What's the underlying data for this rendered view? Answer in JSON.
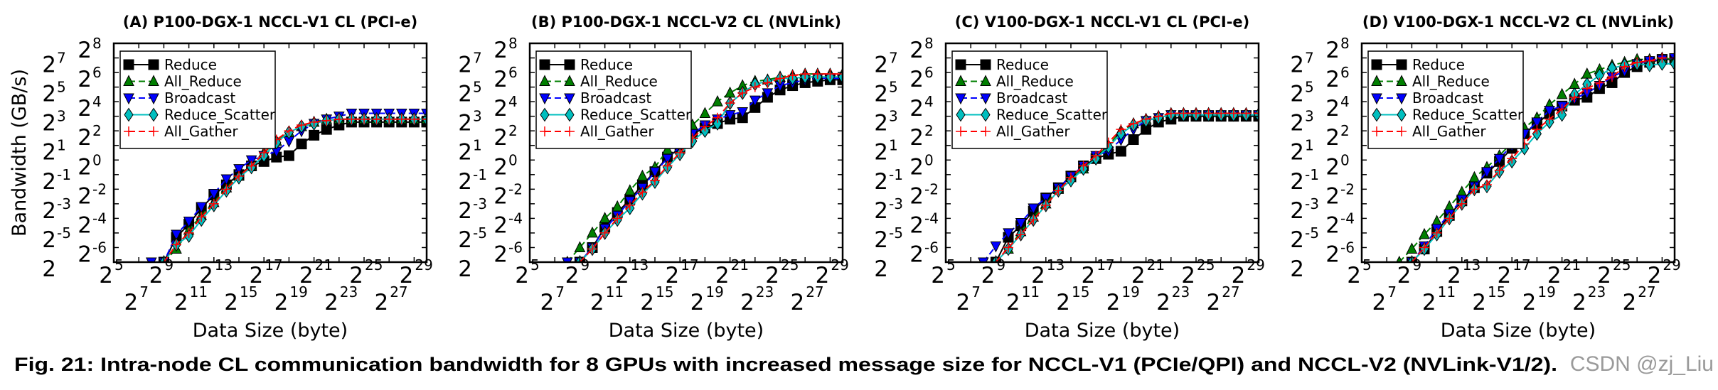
{
  "caption": "Fig. 21: Intra-node CL communication bandwidth for 8 GPUs with increased message size for NCCL-V1 (PCIe/QPI) and NCCL-V2 (NVLink-V1/2).",
  "watermark": "CSDN @zj_Liu",
  "legend_entries": [
    "Reduce",
    "All_Reduce",
    "Broadcast",
    "Reduce_Scatter",
    "All_Gather"
  ],
  "series_style": [
    {
      "name": "Reduce",
      "color": "#000000",
      "marker": "square",
      "line": "solid"
    },
    {
      "name": "All_Reduce",
      "color": "#007f00",
      "marker": "triangle-up",
      "line": "dashed"
    },
    {
      "name": "Broadcast",
      "color": "#0000ff",
      "marker": "triangle-down",
      "line": "dashed"
    },
    {
      "name": "Reduce_Scatter",
      "color": "#00bfbf",
      "marker": "diamond",
      "line": "solid"
    },
    {
      "name": "All_Gather",
      "color": "#ff0000",
      "marker": "plus",
      "line": "dashed"
    }
  ],
  "chart_data": [
    {
      "type": "line",
      "title": "(A) P100-DGX-1 NCCL-V1 CL (PCI-e)",
      "xlabel": "Data Size (byte)",
      "ylabel": "Bandwidth (GB/s)",
      "scale": "log2 both axes (values are exponents of 2)",
      "xlim": [
        5,
        30
      ],
      "ylim": [
        -7,
        8
      ],
      "xtick_base": "2",
      "xtick_exponents": [
        "5",
        "7",
        "9",
        "11",
        "13",
        "15",
        "17",
        "19",
        "21",
        "23",
        "25",
        "27",
        "29"
      ],
      "ytick_base": "2",
      "ytick_exponents": [
        "-6",
        "-5",
        "-4",
        "-3",
        "-2",
        "-1",
        "0",
        "1",
        "2",
        "3",
        "4",
        "5",
        "6",
        "7",
        "8"
      ],
      "legend": "upper-left",
      "grid": false,
      "x": [
        8,
        9,
        10,
        11,
        12,
        13,
        14,
        15,
        16,
        17,
        18,
        19,
        20,
        21,
        22,
        23,
        24,
        25,
        26,
        27,
        28,
        29,
        30
      ],
      "series": [
        {
          "name": "Reduce",
          "values": [
            null,
            -7,
            -5.3,
            -4.4,
            -3.3,
            -2.4,
            -1.7,
            -1.0,
            -0.4,
            -0.1,
            0.2,
            0.3,
            1.1,
            1.7,
            2.1,
            2.4,
            2.6,
            2.6,
            2.6,
            2.6,
            2.6,
            2.6,
            2.6
          ]
        },
        {
          "name": "All_Reduce",
          "values": [
            null,
            -7,
            -6.1,
            -4.8,
            -3.8,
            -2.9,
            -1.9,
            -1.1,
            -0.4,
            0.5,
            1.3,
            1.9,
            2.3,
            2.6,
            2.8,
            2.8,
            2.8,
            2.8,
            2.8,
            2.8,
            2.8,
            2.8,
            2.8
          ]
        },
        {
          "name": "Broadcast",
          "values": [
            -7,
            -7,
            -5.1,
            -4.2,
            -3.2,
            -2.3,
            -1.3,
            -0.6,
            0.0,
            0.3,
            0.6,
            1.3,
            2.0,
            2.5,
            2.8,
            3.0,
            3.2,
            3.2,
            3.2,
            3.2,
            3.2,
            3.2,
            3.2
          ]
        },
        {
          "name": "Reduce_Scatter",
          "values": [
            null,
            -7,
            -5.8,
            -5.2,
            -4.1,
            -3.1,
            -2.1,
            -1.2,
            -0.5,
            0.3,
            1.2,
            1.9,
            2.3,
            2.5,
            2.7,
            2.8,
            2.8,
            2.8,
            2.8,
            2.8,
            2.8,
            2.8,
            2.8
          ]
        },
        {
          "name": "All_Gather",
          "values": [
            null,
            -7,
            -5.8,
            -5.0,
            -3.9,
            -3.0,
            -2.0,
            -1.1,
            -0.4,
            0.5,
            1.4,
            2.0,
            2.4,
            2.6,
            2.7,
            2.8,
            2.8,
            2.8,
            2.8,
            2.8,
            2.8,
            2.8,
            2.8
          ]
        }
      ]
    },
    {
      "type": "line",
      "title": "(B) P100-DGX-1 NCCL-V2 CL (NVLink)",
      "xlabel": "Data Size (byte)",
      "scale": "log2 both axes (values are exponents of 2)",
      "xlim": [
        5,
        30
      ],
      "ylim": [
        -7,
        8
      ],
      "xtick_base": "2",
      "xtick_exponents": [
        "5",
        "7",
        "9",
        "11",
        "13",
        "15",
        "17",
        "19",
        "21",
        "23",
        "25",
        "27",
        "29"
      ],
      "ytick_base": "2",
      "ytick_exponents": [
        "-6",
        "-5",
        "-4",
        "-3",
        "-2",
        "-1",
        "0",
        "1",
        "2",
        "3",
        "4",
        "5",
        "6",
        "7",
        "8"
      ],
      "legend": "upper-left",
      "grid": false,
      "x": [
        8,
        9,
        10,
        11,
        12,
        13,
        14,
        15,
        16,
        17,
        18,
        19,
        20,
        21,
        22,
        23,
        24,
        25,
        26,
        27,
        28,
        29,
        30
      ],
      "series": [
        {
          "name": "Reduce",
          "values": [
            null,
            -7,
            -6.0,
            -4.6,
            -3.6,
            -2.7,
            -1.7,
            -0.8,
            0.2,
            0.8,
            1.8,
            2.2,
            2.5,
            2.8,
            2.9,
            3.6,
            4.3,
            4.8,
            5.1,
            5.3,
            5.4,
            5.5,
            5.5
          ]
        },
        {
          "name": "All_Reduce",
          "values": [
            -7,
            -6.0,
            -5.0,
            -4.0,
            -3.2,
            -2.1,
            -1.1,
            -0.5,
            0.7,
            1.4,
            2.4,
            3.2,
            4.0,
            4.6,
            5.1,
            5.4,
            5.5,
            5.7,
            5.8,
            5.9,
            5.9,
            5.9,
            5.9
          ]
        },
        {
          "name": "Broadcast",
          "values": [
            -7,
            -7,
            -6.0,
            -4.7,
            -3.8,
            -2.8,
            -1.9,
            -0.8,
            0.1,
            0.9,
            1.8,
            2.4,
            2.8,
            3.1,
            3.3,
            4.1,
            4.6,
            5.1,
            5.3,
            5.5,
            5.6,
            5.6,
            5.6
          ]
        },
        {
          "name": "Reduce_Scatter",
          "values": [
            null,
            -7,
            -6.1,
            -5.0,
            -4.1,
            -3.3,
            -2.3,
            -1.5,
            -0.5,
            0.4,
            1.3,
            2.0,
            2.5,
            3.9,
            4.6,
            5.2,
            5.4,
            5.6,
            5.6,
            5.7,
            5.7,
            5.7,
            5.7
          ]
        },
        {
          "name": "All_Gather",
          "values": [
            null,
            -7,
            -6.1,
            -5.0,
            -4.0,
            -3.1,
            -2.2,
            -1.4,
            -0.4,
            0.5,
            1.5,
            2.3,
            2.9,
            3.9,
            4.6,
            5.0,
            5.3,
            5.6,
            5.8,
            5.9,
            5.9,
            5.9,
            5.9
          ]
        }
      ]
    },
    {
      "type": "line",
      "title": "(C) V100-DGX-1 NCCL-V1 CL (PCI-e)",
      "xlabel": "Data Size (byte)",
      "scale": "log2 both axes (values are exponents of 2)",
      "xlim": [
        5,
        30
      ],
      "ylim": [
        -7,
        8
      ],
      "xtick_base": "2",
      "xtick_exponents": [
        "5",
        "7",
        "9",
        "11",
        "13",
        "15",
        "17",
        "19",
        "21",
        "23",
        "25",
        "27",
        "29"
      ],
      "ytick_base": "2",
      "ytick_exponents": [
        "-6",
        "-5",
        "-4",
        "-3",
        "-2",
        "-1",
        "0",
        "1",
        "2",
        "3",
        "4",
        "5",
        "6",
        "7",
        "8"
      ],
      "legend": "upper-left",
      "grid": false,
      "x": [
        8,
        9,
        10,
        11,
        12,
        13,
        14,
        15,
        16,
        17,
        18,
        19,
        20,
        21,
        22,
        23,
        24,
        25,
        26,
        27,
        28,
        29,
        30
      ],
      "series": [
        {
          "name": "Reduce",
          "values": [
            null,
            -7,
            -5.3,
            -4.5,
            -3.5,
            -2.6,
            -1.9,
            -1.1,
            -0.4,
            0.1,
            0.4,
            0.6,
            1.4,
            2.1,
            2.6,
            2.8,
            3.0,
            3.0,
            3.0,
            3.0,
            3.0,
            3.0,
            3.0
          ]
        },
        {
          "name": "All_Reduce",
          "values": [
            null,
            -7,
            -6.1,
            -4.9,
            -3.9,
            -3.0,
            -2.0,
            -1.2,
            -0.6,
            0.2,
            1.0,
            2.0,
            2.5,
            2.8,
            3.0,
            3.2,
            3.2,
            3.2,
            3.2,
            3.2,
            3.2,
            3.2,
            3.2
          ]
        },
        {
          "name": "Broadcast",
          "values": [
            -7,
            -5.9,
            -5.0,
            -4.3,
            -3.3,
            -2.6,
            -1.9,
            -1.1,
            -0.4,
            0.3,
            0.6,
            1.4,
            2.1,
            2.7,
            2.9,
            3.1,
            3.1,
            3.1,
            3.1,
            3.1,
            3.1,
            3.1,
            3.1
          ]
        },
        {
          "name": "Reduce_Scatter",
          "values": [
            null,
            -7,
            -6.1,
            -5.1,
            -4.1,
            -3.1,
            -2.1,
            -1.4,
            -0.6,
            0.1,
            0.9,
            1.8,
            2.4,
            2.7,
            2.9,
            3.1,
            3.1,
            3.1,
            3.1,
            3.1,
            3.1,
            3.1,
            3.1
          ]
        },
        {
          "name": "All_Gather",
          "values": [
            null,
            -7,
            -6.0,
            -5.1,
            -4.1,
            -3.1,
            -2.1,
            -1.2,
            -0.4,
            0.3,
            1.2,
            2.1,
            2.5,
            2.8,
            3.0,
            3.2,
            3.2,
            3.2,
            3.2,
            3.2,
            3.2,
            3.2,
            3.2
          ]
        }
      ]
    },
    {
      "type": "line",
      "title": "(D) V100-DGX-1 NCCL-V2 CL (NVLink)",
      "xlabel": "Data Size (byte)",
      "scale": "log2 both axes (values are exponents of 2)",
      "xlim": [
        5,
        30
      ],
      "ylim": [
        -7,
        8
      ],
      "xtick_base": "2",
      "xtick_exponents": [
        "5",
        "7",
        "9",
        "11",
        "13",
        "15",
        "17",
        "19",
        "21",
        "23",
        "25",
        "27",
        "29"
      ],
      "ytick_base": "2",
      "ytick_exponents": [
        "-6",
        "-5",
        "-4",
        "-3",
        "-2",
        "-1",
        "0",
        "1",
        "2",
        "3",
        "4",
        "5",
        "6",
        "7",
        "8"
      ],
      "legend": "upper-left",
      "grid": false,
      "x": [
        8,
        9,
        10,
        11,
        12,
        13,
        14,
        15,
        16,
        17,
        18,
        19,
        20,
        21,
        22,
        23,
        24,
        25,
        26,
        27,
        28,
        29,
        30
      ],
      "series": [
        {
          "name": "Reduce",
          "values": [
            null,
            -7,
            -6.1,
            -4.9,
            -3.8,
            -2.8,
            -1.9,
            -0.9,
            -0.1,
            0.8,
            1.8,
            2.5,
            3.2,
            3.7,
            4.1,
            4.3,
            4.9,
            5.3,
            6.0,
            6.4,
            6.7,
            6.9,
            6.9
          ]
        },
        {
          "name": "All_Reduce",
          "values": [
            -7,
            -6.1,
            -5.1,
            -4.2,
            -3.2,
            -2.2,
            -1.2,
            -0.5,
            0.3,
            1.2,
            2.2,
            2.9,
            3.8,
            4.5,
            5.2,
            5.9,
            6.2,
            6.5,
            6.7,
            6.9,
            6.9,
            7.0,
            6.9
          ]
        },
        {
          "name": "Broadcast",
          "values": [
            null,
            -7,
            -5.9,
            -4.7,
            -3.7,
            -2.7,
            -1.8,
            -0.8,
            0.1,
            1.0,
            1.8,
            2.6,
            3.4,
            3.7,
            4.2,
            4.6,
            5.1,
            5.7,
            6.1,
            6.6,
            6.8,
            6.9,
            7.0
          ]
        },
        {
          "name": "Reduce_Scatter",
          "values": [
            null,
            -7,
            -6.1,
            -5.1,
            -4.0,
            -3.0,
            -2.0,
            -1.8,
            -0.8,
            -0.1,
            0.8,
            1.8,
            2.6,
            3.1,
            4.5,
            5.2,
            5.8,
            6.3,
            6.5,
            6.6,
            6.5,
            6.6,
            6.6
          ]
        },
        {
          "name": "All_Gather",
          "values": [
            null,
            -7,
            -6.0,
            -5.0,
            -4.0,
            -3.0,
            -2.0,
            -1.7,
            -0.7,
            0.1,
            1.1,
            2.1,
            2.8,
            3.5,
            4.3,
            4.9,
            5.3,
            5.7,
            6.4,
            6.7,
            6.8,
            7.0,
            7.0
          ]
        }
      ]
    }
  ]
}
